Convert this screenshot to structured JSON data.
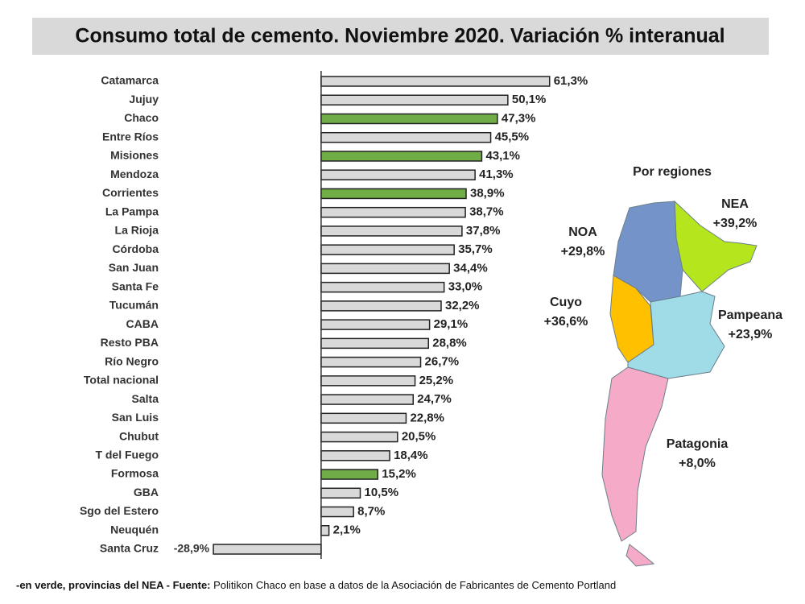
{
  "chart_data": {
    "type": "bar",
    "orientation": "horizontal",
    "title": "Consumo total de cemento. Noviembre 2020. Variación % interanual",
    "categories": [
      "Catamarca",
      "Jujuy",
      "Chaco",
      "Entre Ríos",
      "Misiones",
      "Mendoza",
      "Corrientes",
      "La Pampa",
      "La Rioja",
      "Córdoba",
      "San Juan",
      "Santa Fe",
      "Tucumán",
      "CABA",
      "Resto PBA",
      "Río Negro",
      "Total nacional",
      "Salta",
      "San Luis",
      "Chubut",
      "T del Fuego",
      "Formosa",
      "GBA",
      "Sgo del Estero",
      "Neuquén",
      "Santa Cruz"
    ],
    "values": [
      61.3,
      50.1,
      47.3,
      45.5,
      43.1,
      41.3,
      38.9,
      38.7,
      37.8,
      35.7,
      34.4,
      33.0,
      32.2,
      29.1,
      28.8,
      26.7,
      25.2,
      24.7,
      22.8,
      20.5,
      18.4,
      15.2,
      10.5,
      8.7,
      2.1,
      -28.9
    ],
    "value_labels": [
      "61,3%",
      "50,1%",
      "47,3%",
      "45,5%",
      "43,1%",
      "41,3%",
      "38,9%",
      "38,7%",
      "37,8%",
      "35,7%",
      "34,4%",
      "33,0%",
      "32,2%",
      "29,1%",
      "28,8%",
      "26,7%",
      "25,2%",
      "24,7%",
      "22,8%",
      "20,5%",
      "18,4%",
      "15,2%",
      "10,5%",
      "8,7%",
      "2,1%",
      "-28,9%"
    ],
    "colors": [
      "#d9d9d9",
      "#d9d9d9",
      "#70ad47",
      "#d9d9d9",
      "#70ad47",
      "#d9d9d9",
      "#70ad47",
      "#d9d9d9",
      "#d9d9d9",
      "#d9d9d9",
      "#d9d9d9",
      "#d9d9d9",
      "#d9d9d9",
      "#d9d9d9",
      "#d9d9d9",
      "#d9d9d9",
      "#d9d9d9",
      "#d9d9d9",
      "#d9d9d9",
      "#d9d9d9",
      "#d9d9d9",
      "#70ad47",
      "#d9d9d9",
      "#d9d9d9",
      "#d9d9d9",
      "#d9d9d9"
    ],
    "xlim": [
      -30,
      70
    ],
    "map_title": "Por regiones",
    "regions": [
      {
        "name": "NEA",
        "label": "+39,2%",
        "color": "#b5e61d"
      },
      {
        "name": "NOA",
        "label": "+29,8%",
        "color": "#7393c9"
      },
      {
        "name": "Cuyo",
        "label": "+36,6%",
        "color": "#ffc000"
      },
      {
        "name": "Pampeana",
        "label": "+23,9%",
        "color": "#a0dbe8"
      },
      {
        "name": "Patagonia",
        "label": "+8,0%",
        "color": "#f5aac8"
      }
    ],
    "footnote_bold": "-en verde, provincias del NEA - Fuente:",
    "footnote": "Politikon Chaco en base a datos de la Asociación de Fabricantes de Cemento Portland"
  }
}
